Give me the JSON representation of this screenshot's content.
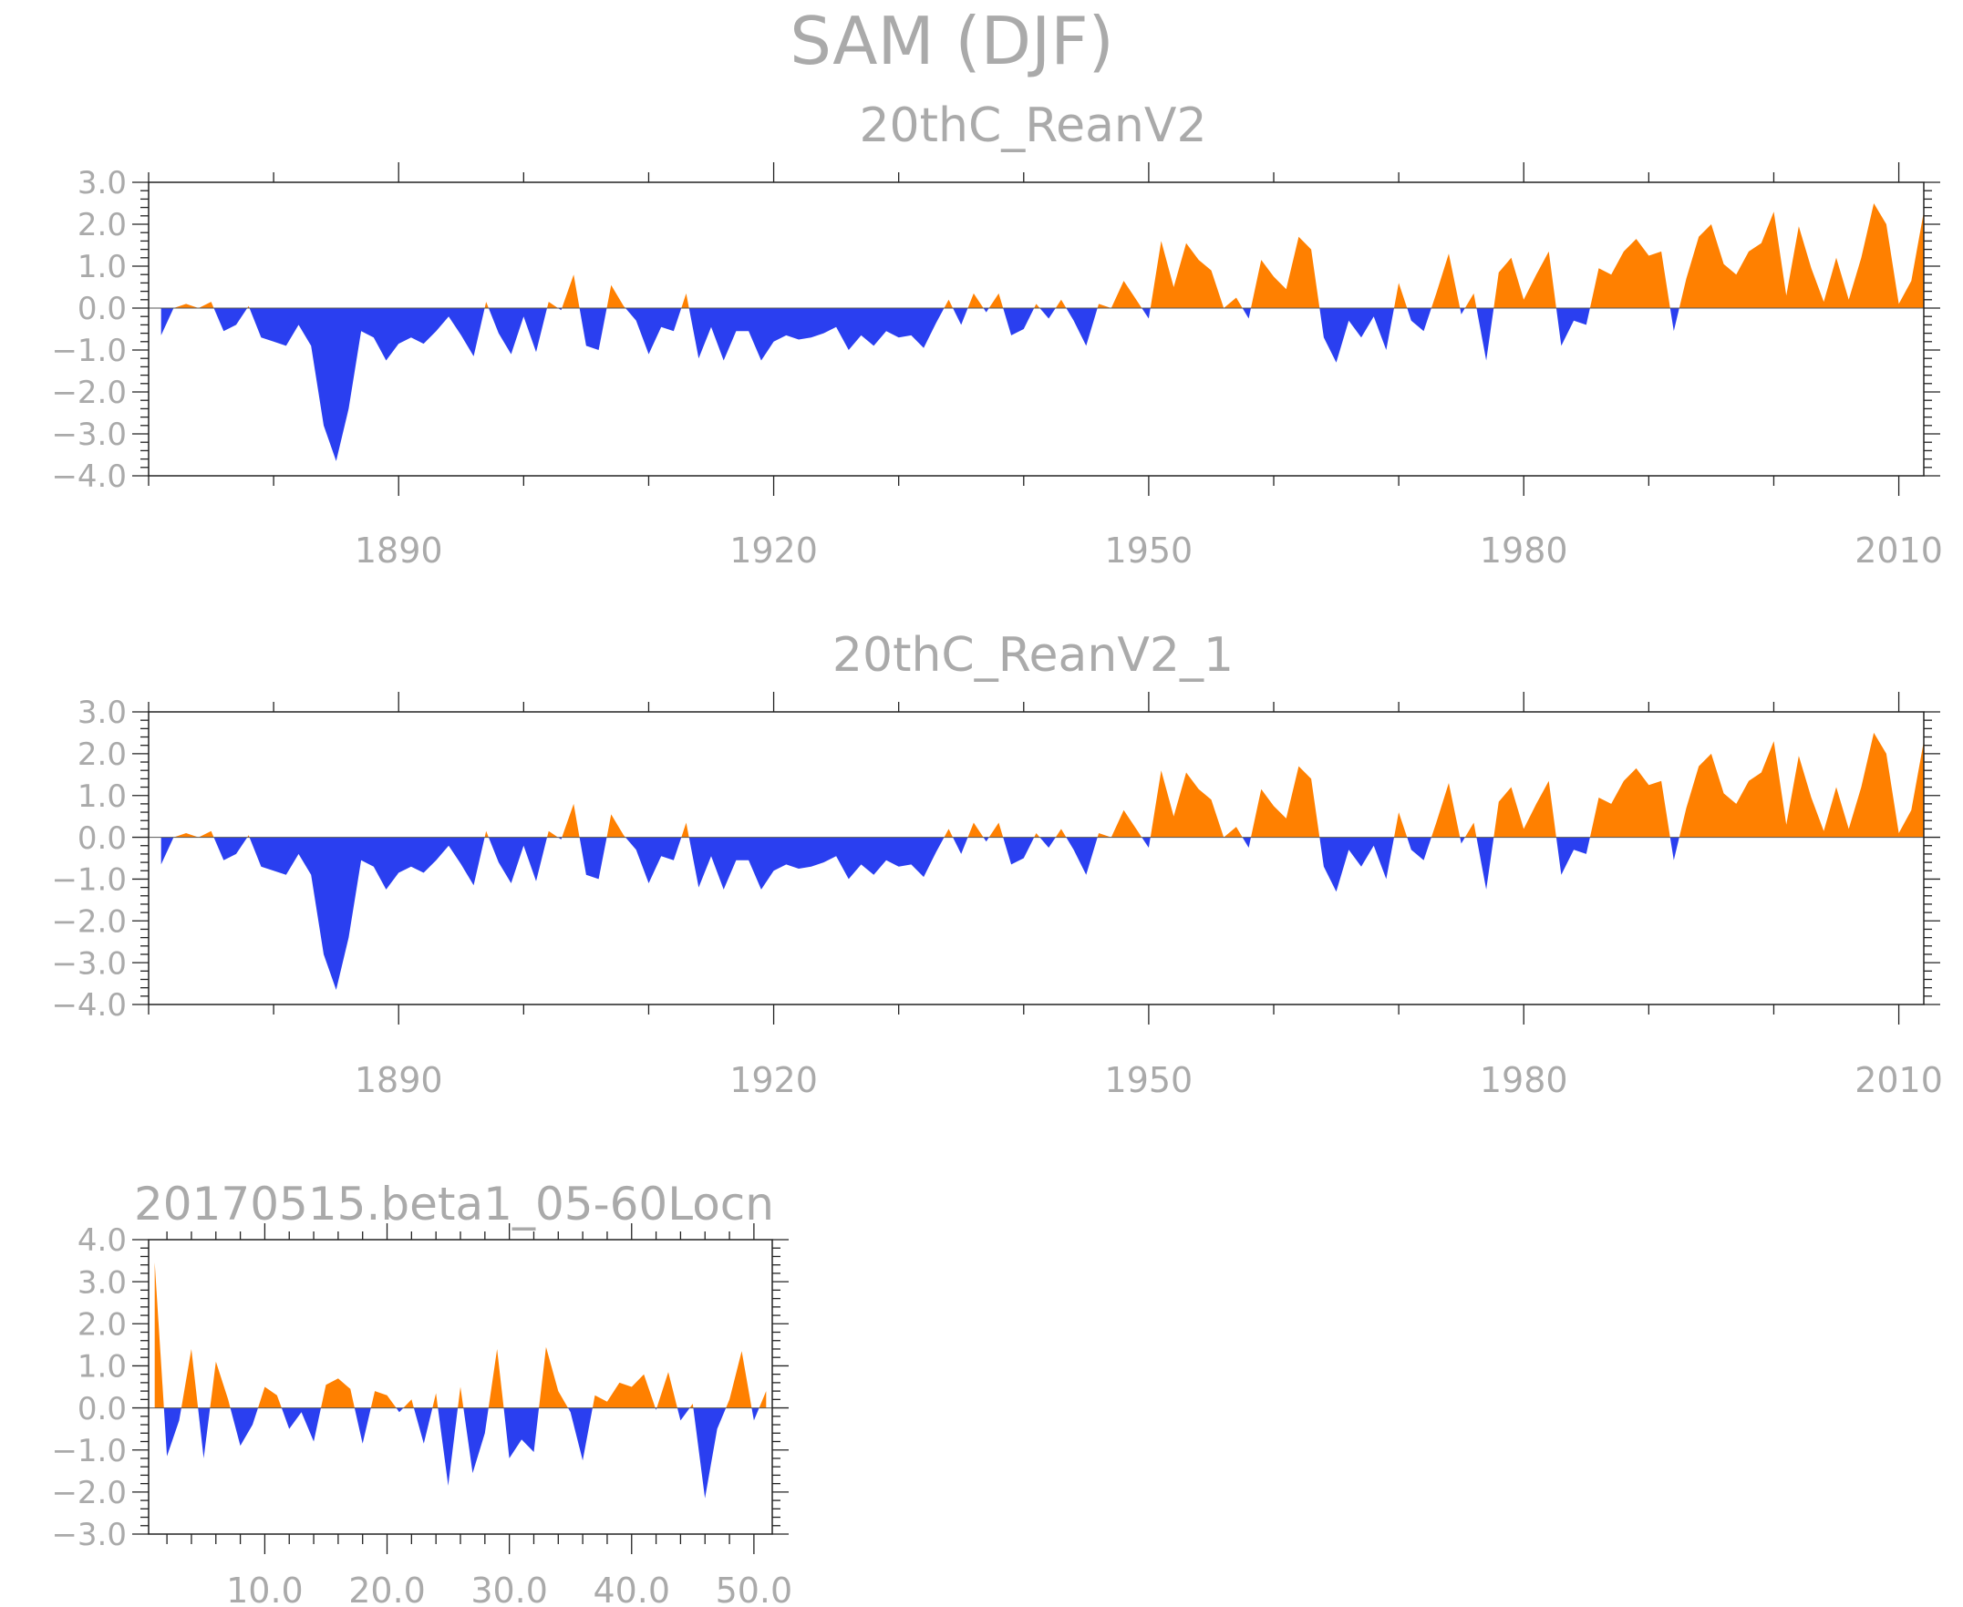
{
  "figure_title": "SAM (DJF)",
  "colors": {
    "positive": "#ff8000",
    "negative": "#2a3ff0",
    "text": "#aaaaaa",
    "frame": "#222222"
  },
  "chart_data": [
    {
      "type": "area",
      "title": "20thC_ReanV2",
      "xlabel": "",
      "ylabel": "",
      "xlim": [
        1870,
        2012
      ],
      "ylim": [
        -4.0,
        3.0
      ],
      "xticks": [
        1890,
        1920,
        1950,
        1980,
        2010
      ],
      "xtick_labels": [
        "1890",
        "1920",
        "1950",
        "1980",
        "2010"
      ],
      "yticks": [
        -4.0,
        -3.0,
        -2.0,
        -1.0,
        0.0,
        1.0,
        2.0,
        3.0
      ],
      "ytick_labels": [
        "−4.0",
        "−3.0",
        "−2.0",
        "−1.0",
        "0.0",
        "1.0",
        "2.0",
        "3.0"
      ],
      "grid": false,
      "fill": "positive orange / negative blue",
      "x_start": 1871,
      "values": [
        -0.65,
        0.0,
        0.1,
        0.0,
        0.15,
        -0.55,
        -0.4,
        0.05,
        -0.7,
        -0.8,
        -0.9,
        -0.4,
        -0.9,
        -2.8,
        -3.65,
        -2.4,
        -0.55,
        -0.7,
        -1.25,
        -0.85,
        -0.7,
        -0.85,
        -0.55,
        -0.2,
        -0.65,
        -1.15,
        0.15,
        -0.6,
        -1.1,
        -0.2,
        -1.05,
        0.15,
        -0.05,
        0.8,
        -0.9,
        -1.0,
        0.55,
        0.05,
        -0.3,
        -1.1,
        -0.45,
        -0.55,
        0.35,
        -1.2,
        -0.45,
        -1.25,
        -0.55,
        -0.55,
        -1.25,
        -0.8,
        -0.65,
        -0.75,
        -0.7,
        -0.6,
        -0.45,
        -1.0,
        -0.65,
        -0.9,
        -0.55,
        -0.7,
        -0.65,
        -0.95,
        -0.35,
        0.2,
        -0.4,
        0.35,
        -0.1,
        0.35,
        -0.65,
        -0.5,
        0.1,
        -0.25,
        0.2,
        -0.3,
        -0.9,
        0.1,
        0.0,
        0.65,
        0.2,
        -0.25,
        1.6,
        0.5,
        1.55,
        1.15,
        0.9,
        0.0,
        0.25,
        -0.25,
        1.15,
        0.75,
        0.45,
        1.7,
        1.4,
        -0.7,
        -1.3,
        -0.3,
        -0.7,
        -0.2,
        -1.0,
        0.6,
        -0.3,
        -0.55,
        0.35,
        1.3,
        -0.15,
        0.35,
        -1.25,
        0.85,
        1.2,
        0.2,
        0.8,
        1.35,
        -0.9,
        -0.3,
        -0.4,
        0.95,
        0.8,
        1.35,
        1.65,
        1.25,
        1.35,
        -0.55,
        0.7,
        1.7,
        2.0,
        1.05,
        0.8,
        1.35,
        1.55,
        2.3,
        0.3,
        1.95,
        0.95,
        0.15,
        1.2,
        0.2,
        1.2,
        2.5,
        2.0,
        0.1,
        0.65,
        2.3
      ]
    },
    {
      "type": "area",
      "title": "20thC_ReanV2_1",
      "xlabel": "",
      "ylabel": "",
      "xlim": [
        1870,
        2012
      ],
      "ylim": [
        -4.0,
        3.0
      ],
      "xticks": [
        1890,
        1920,
        1950,
        1980,
        2010
      ],
      "xtick_labels": [
        "1890",
        "1920",
        "1950",
        "1980",
        "2010"
      ],
      "yticks": [
        -4.0,
        -3.0,
        -2.0,
        -1.0,
        0.0,
        1.0,
        2.0,
        3.0
      ],
      "ytick_labels": [
        "−4.0",
        "−3.0",
        "−2.0",
        "−1.0",
        "0.0",
        "1.0",
        "2.0",
        "3.0"
      ],
      "grid": false,
      "fill": "positive orange / negative blue",
      "x_start": 1871,
      "values": [
        -0.65,
        0.0,
        0.1,
        0.0,
        0.15,
        -0.55,
        -0.4,
        0.05,
        -0.7,
        -0.8,
        -0.9,
        -0.4,
        -0.9,
        -2.8,
        -3.65,
        -2.4,
        -0.55,
        -0.7,
        -1.25,
        -0.85,
        -0.7,
        -0.85,
        -0.55,
        -0.2,
        -0.65,
        -1.15,
        0.15,
        -0.6,
        -1.1,
        -0.2,
        -1.05,
        0.15,
        -0.05,
        0.8,
        -0.9,
        -1.0,
        0.55,
        0.05,
        -0.3,
        -1.1,
        -0.45,
        -0.55,
        0.35,
        -1.2,
        -0.45,
        -1.25,
        -0.55,
        -0.55,
        -1.25,
        -0.8,
        -0.65,
        -0.75,
        -0.7,
        -0.6,
        -0.45,
        -1.0,
        -0.65,
        -0.9,
        -0.55,
        -0.7,
        -0.65,
        -0.95,
        -0.35,
        0.2,
        -0.4,
        0.35,
        -0.1,
        0.35,
        -0.65,
        -0.5,
        0.1,
        -0.25,
        0.2,
        -0.3,
        -0.9,
        0.1,
        0.0,
        0.65,
        0.2,
        -0.25,
        1.6,
        0.5,
        1.55,
        1.15,
        0.9,
        0.0,
        0.25,
        -0.25,
        1.15,
        0.75,
        0.45,
        1.7,
        1.4,
        -0.7,
        -1.3,
        -0.3,
        -0.7,
        -0.2,
        -1.0,
        0.6,
        -0.3,
        -0.55,
        0.35,
        1.3,
        -0.15,
        0.35,
        -1.25,
        0.85,
        1.2,
        0.2,
        0.8,
        1.35,
        -0.9,
        -0.3,
        -0.4,
        0.95,
        0.8,
        1.35,
        1.65,
        1.25,
        1.35,
        -0.55,
        0.7,
        1.7,
        2.0,
        1.05,
        0.8,
        1.35,
        1.55,
        2.3,
        0.3,
        1.95,
        0.95,
        0.15,
        1.2,
        0.2,
        1.2,
        2.5,
        2.0,
        0.1,
        0.65,
        2.3
      ]
    },
    {
      "type": "area",
      "title": "20170515.beta1_05-60Locn",
      "xlabel": "",
      "ylabel": "",
      "xlim": [
        0.5,
        51.5
      ],
      "ylim": [
        -3.0,
        4.0
      ],
      "xticks": [
        10.0,
        20.0,
        30.0,
        40.0,
        50.0
      ],
      "xtick_labels": [
        "10.0",
        "20.0",
        "30.0",
        "40.0",
        "50.0"
      ],
      "yticks": [
        -3.0,
        -2.0,
        -1.0,
        0.0,
        1.0,
        2.0,
        3.0,
        4.0
      ],
      "ytick_labels": [
        "−3.0",
        "−2.0",
        "−1.0",
        "0.0",
        "1.0",
        "2.0",
        "3.0",
        "4.0"
      ],
      "grid": false,
      "fill": "positive orange / negative blue",
      "x_start": 1,
      "values": [
        3.45,
        -1.15,
        -0.3,
        1.4,
        -1.2,
        1.1,
        0.2,
        -0.9,
        -0.4,
        0.5,
        0.3,
        -0.5,
        -0.1,
        -0.8,
        0.55,
        0.7,
        0.45,
        -0.85,
        0.4,
        0.3,
        -0.1,
        0.2,
        -0.85,
        0.35,
        -1.85,
        0.5,
        -1.55,
        -0.6,
        1.4,
        -1.2,
        -0.75,
        -1.05,
        1.45,
        0.4,
        -0.1,
        -1.25,
        0.3,
        0.15,
        0.6,
        0.5,
        0.8,
        -0.05,
        0.85,
        -0.3,
        0.1,
        -2.15,
        -0.5,
        0.2,
        1.35,
        -0.3,
        0.4
      ]
    }
  ]
}
